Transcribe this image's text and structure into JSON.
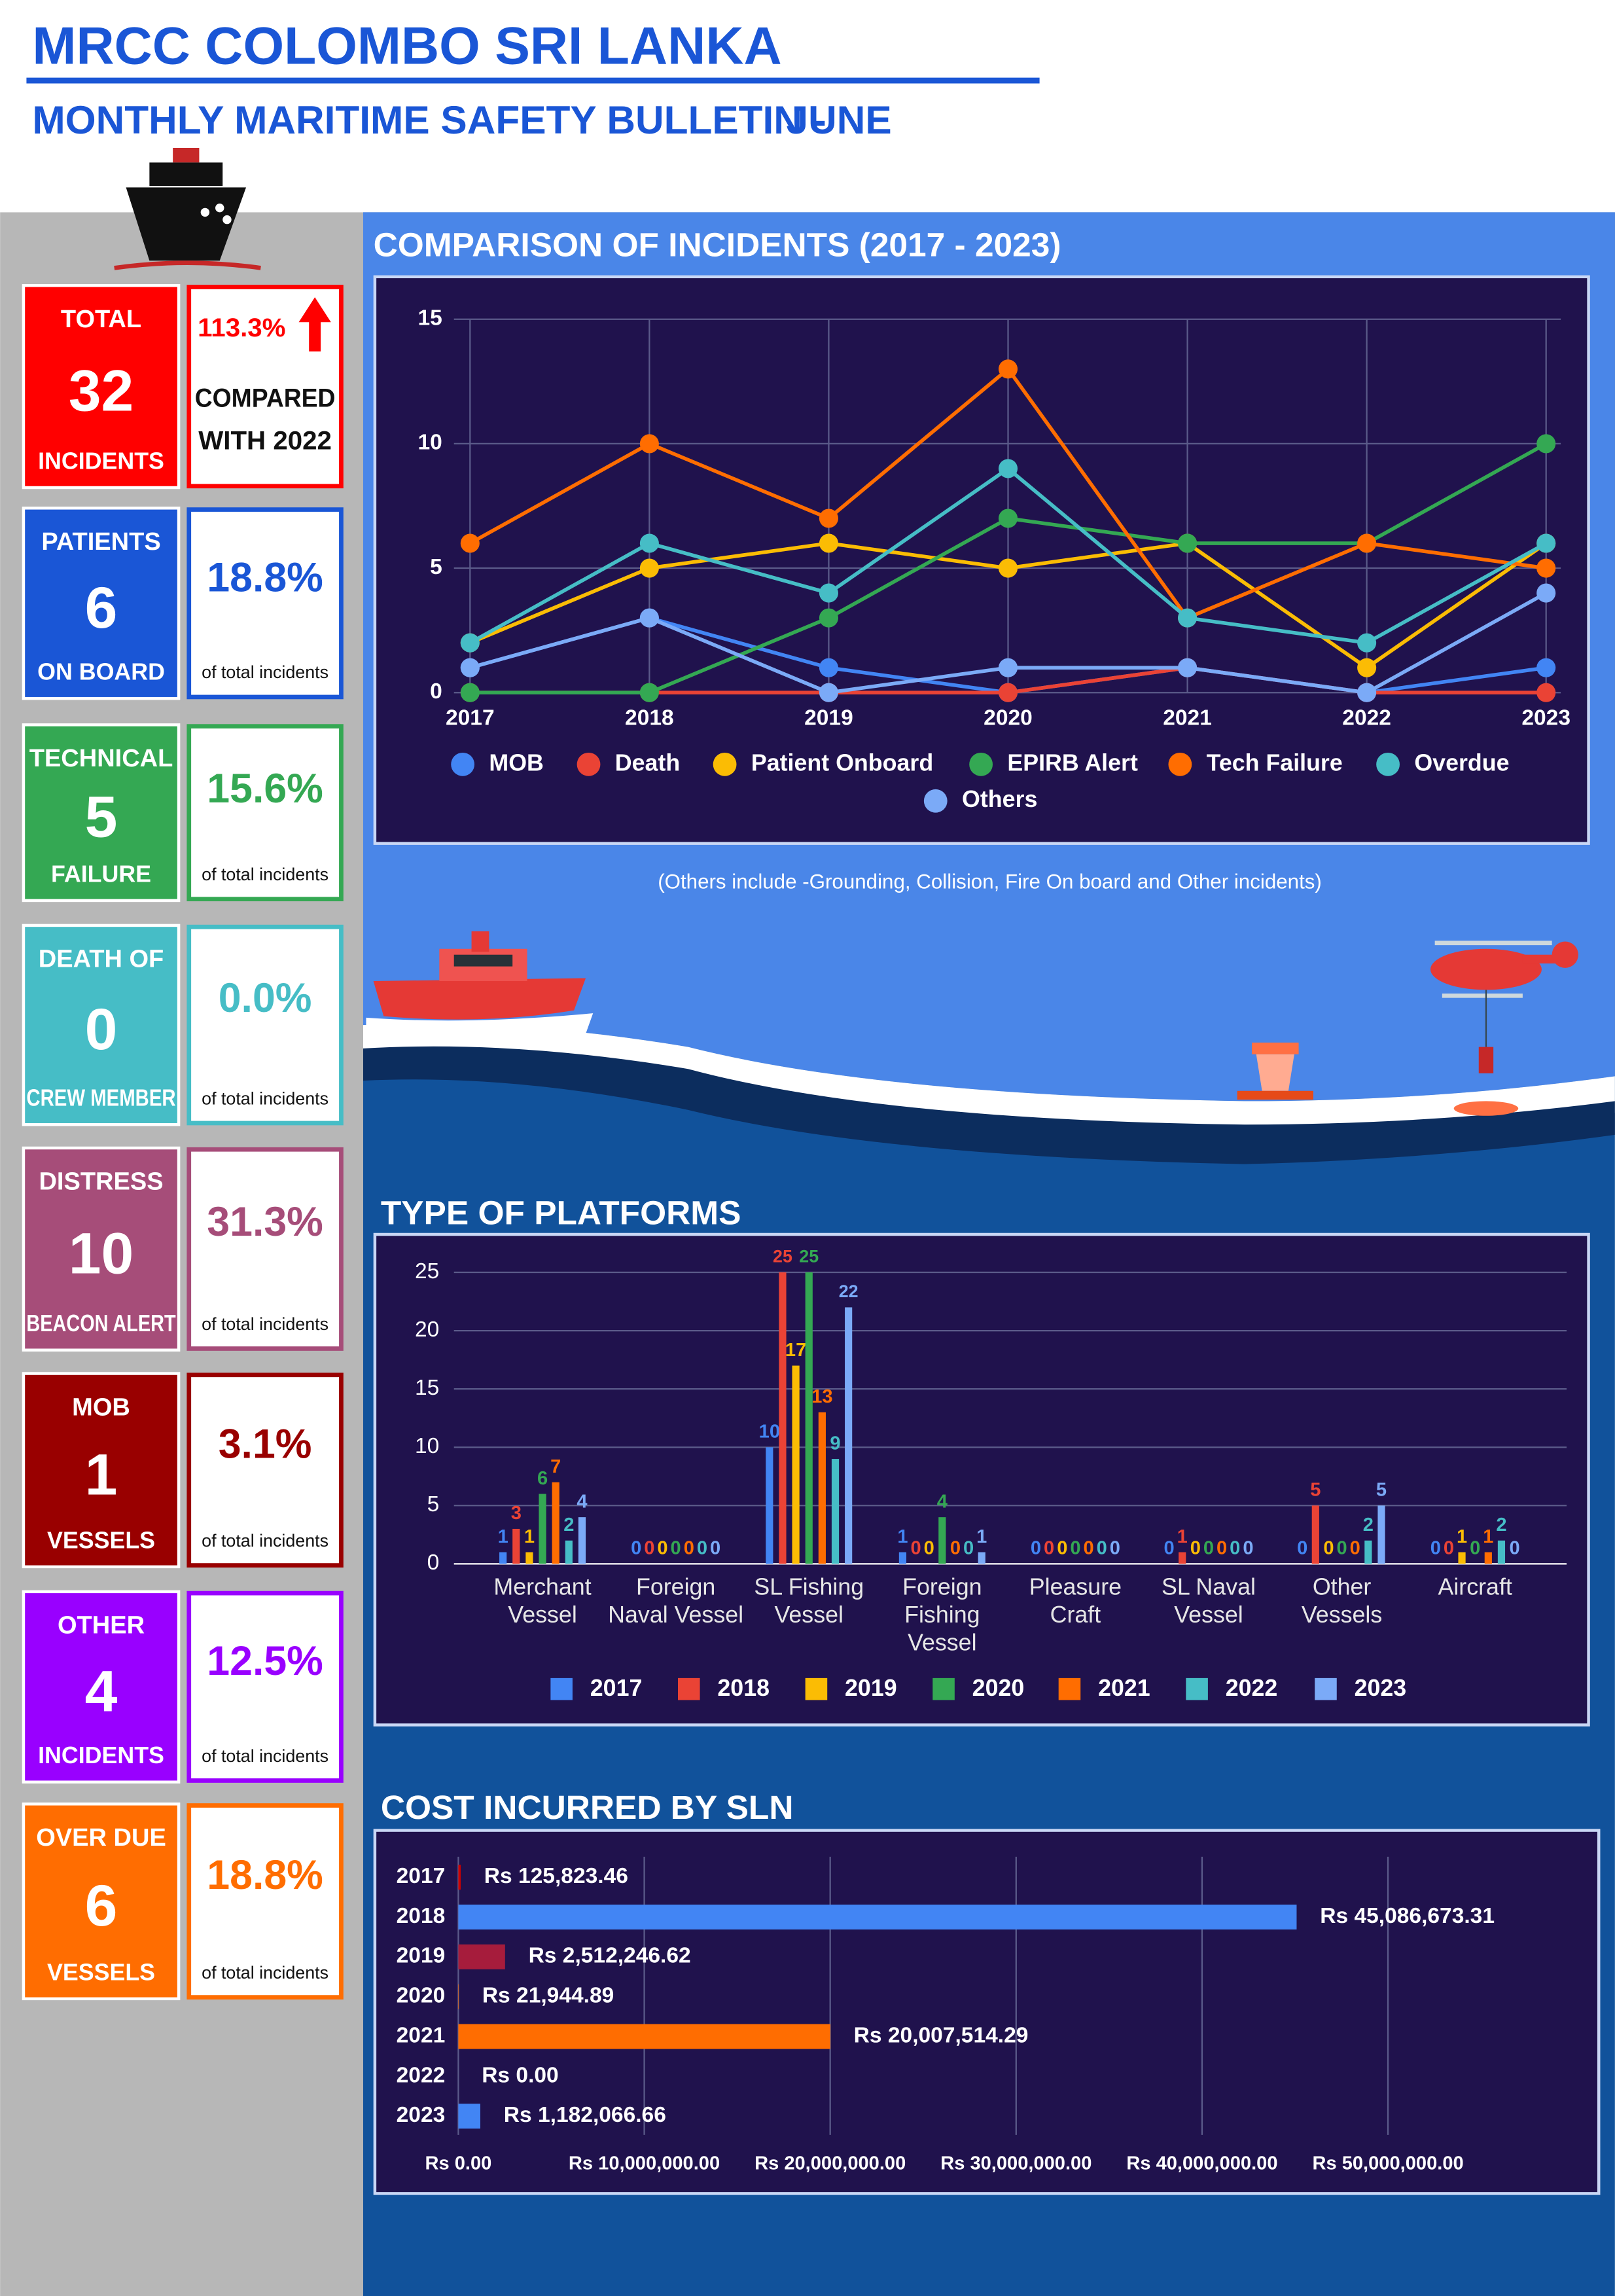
{
  "header": {
    "title": "MRCC COLOMBO SRI LANKA",
    "subtitle": "MONTHLY MARITIME SAFETY BULLETIN -",
    "month": "JUNE"
  },
  "cards": [
    {
      "label_top": "TOTAL",
      "value": 32,
      "label_bottom": "INCIDENTS",
      "change": "113.3%",
      "note": [
        "COMPARED",
        "WITH 2022"
      ],
      "color": "#ff0000"
    },
    {
      "label_top": "PATIENTS",
      "value": 6,
      "label_bottom": "ON BOARD",
      "percent": "18.8%",
      "note": "of total incidents",
      "color": "#1a56d6"
    },
    {
      "label_top": "TECHNICAL",
      "value": 5,
      "label_bottom": "FAILURE",
      "percent": "15.6%",
      "note": "of total incidents",
      "color": "#34a853"
    },
    {
      "label_top": "DEATH OF",
      "value": 0,
      "label_bottom": "CREW MEMBER",
      "percent": "0.0%",
      "note": "of total incidents",
      "color": "#46bdc6"
    },
    {
      "label_top": "DISTRESS",
      "value": 10,
      "label_bottom": "BEACON ALERT",
      "percent": "31.3%",
      "note": "of total incidents",
      "color": "#a64d79"
    },
    {
      "label_top": "MOB",
      "value": 1,
      "label_bottom": "VESSELS",
      "percent": "3.1%",
      "note": "of total incidents",
      "color": "#990000"
    },
    {
      "label_top": "OTHER",
      "value": 4,
      "label_bottom": "INCIDENTS",
      "percent": "12.5%",
      "note": "of total incidents",
      "color": "#9900ff"
    },
    {
      "label_top": "OVER DUE",
      "value": 6,
      "label_bottom": "VESSELS",
      "percent": "18.8%",
      "note": "of total incidents",
      "color": "#ff6d01"
    }
  ],
  "chart_data": [
    {
      "type": "line",
      "title": "COMPARISON OF INCIDENTS (2017 - 2023)",
      "annotation": "(Others include -Grounding, Collision, Fire On board and Other incidents)",
      "categories": [
        "2017",
        "2018",
        "2019",
        "2020",
        "2021",
        "2022",
        "2023"
      ],
      "ylim": [
        0,
        15
      ],
      "yticks": [
        0,
        5,
        10,
        15
      ],
      "grid": true,
      "series": [
        {
          "name": "MOB",
          "color": "#4285f4",
          "values": [
            1,
            3,
            1,
            0,
            1,
            0,
            1
          ]
        },
        {
          "name": "Death",
          "color": "#ea4335",
          "values": [
            0,
            0,
            0,
            0,
            1,
            0,
            0
          ]
        },
        {
          "name": "Patient Onboard",
          "color": "#fbbc04",
          "values": [
            2,
            5,
            6,
            5,
            6,
            1,
            6
          ]
        },
        {
          "name": "EPIRB Alert",
          "color": "#34a853",
          "values": [
            0,
            0,
            3,
            7,
            6,
            6,
            10
          ]
        },
        {
          "name": "Tech Failure",
          "color": "#ff6d01",
          "values": [
            6,
            10,
            7,
            13,
            3,
            6,
            5
          ]
        },
        {
          "name": "Overdue",
          "color": "#46bdc6",
          "values": [
            2,
            6,
            4,
            9,
            3,
            2,
            6
          ]
        },
        {
          "name": "Others",
          "color": "#7baaf7",
          "values": [
            1,
            3,
            0,
            1,
            1,
            0,
            4
          ]
        }
      ]
    },
    {
      "type": "bar",
      "title": "TYPE OF PLATFORMS",
      "categories": [
        "Merchant Vessel",
        "Foreign Naval Vessel",
        "SL Fishing Vessel",
        "Foreign Fishing Vessel",
        "Pleasure Craft",
        "SL Naval Vessel",
        "Other Vessels",
        "Aircraft"
      ],
      "ylim": [
        0,
        27
      ],
      "yticks": [
        0,
        5,
        10,
        15,
        20,
        25
      ],
      "grid": true,
      "series": [
        {
          "name": "2017",
          "color": "#4285f4",
          "values": [
            1,
            0,
            10,
            1,
            0,
            0,
            0,
            0
          ]
        },
        {
          "name": "2018",
          "color": "#ea4335",
          "values": [
            3,
            0,
            25,
            0,
            0,
            1,
            5,
            0
          ]
        },
        {
          "name": "2019",
          "color": "#fbbc04",
          "values": [
            1,
            0,
            17,
            0,
            0,
            0,
            0,
            1
          ]
        },
        {
          "name": "2020",
          "color": "#34a853",
          "values": [
            6,
            0,
            25,
            4,
            0,
            0,
            0,
            0
          ]
        },
        {
          "name": "2021",
          "color": "#ff6d01",
          "values": [
            7,
            0,
            13,
            0,
            0,
            0,
            0,
            1
          ]
        },
        {
          "name": "2022",
          "color": "#46bdc6",
          "values": [
            2,
            0,
            9,
            0,
            0,
            0,
            2,
            2
          ]
        },
        {
          "name": "2023",
          "color": "#7baaf7",
          "values": [
            4,
            0,
            22,
            1,
            0,
            0,
            5,
            0
          ]
        }
      ]
    },
    {
      "type": "hbar",
      "title": "COST INCURRED BY SLN",
      "categories": [
        "2017",
        "2018",
        "2019",
        "2020",
        "2021",
        "2022",
        "2023"
      ],
      "values": [
        125823.46,
        45086673.31,
        2512246.62,
        21944.89,
        20007514.29,
        0,
        1182066.66
      ],
      "value_labels": [
        "Rs 125,823.46",
        "Rs 45,086,673.31",
        "Rs 2,512,246.62",
        "Rs 21,944.89",
        "Rs 20,007,514.29",
        "Rs 0.00",
        "Rs 1,182,066.66"
      ],
      "colors": [
        "#cc0000",
        "#4285f4",
        "#a61c3c",
        "#ff6d01",
        "#ff6d01",
        "#4285f4",
        "#4285f4"
      ],
      "xlim": [
        0,
        60000000
      ],
      "xticks": [
        {
          "value": 0,
          "label": "Rs 0.00"
        },
        {
          "value": 10000000,
          "label": "Rs 10,000,000.00"
        },
        {
          "value": 20000000,
          "label": "Rs 20,000,000.00"
        },
        {
          "value": 30000000,
          "label": "Rs 30,000,000.00"
        },
        {
          "value": 40000000,
          "label": "Rs 40,000,000.00"
        },
        {
          "value": 50000000,
          "label": "Rs 50,000,000.00"
        }
      ],
      "grid": true
    }
  ]
}
